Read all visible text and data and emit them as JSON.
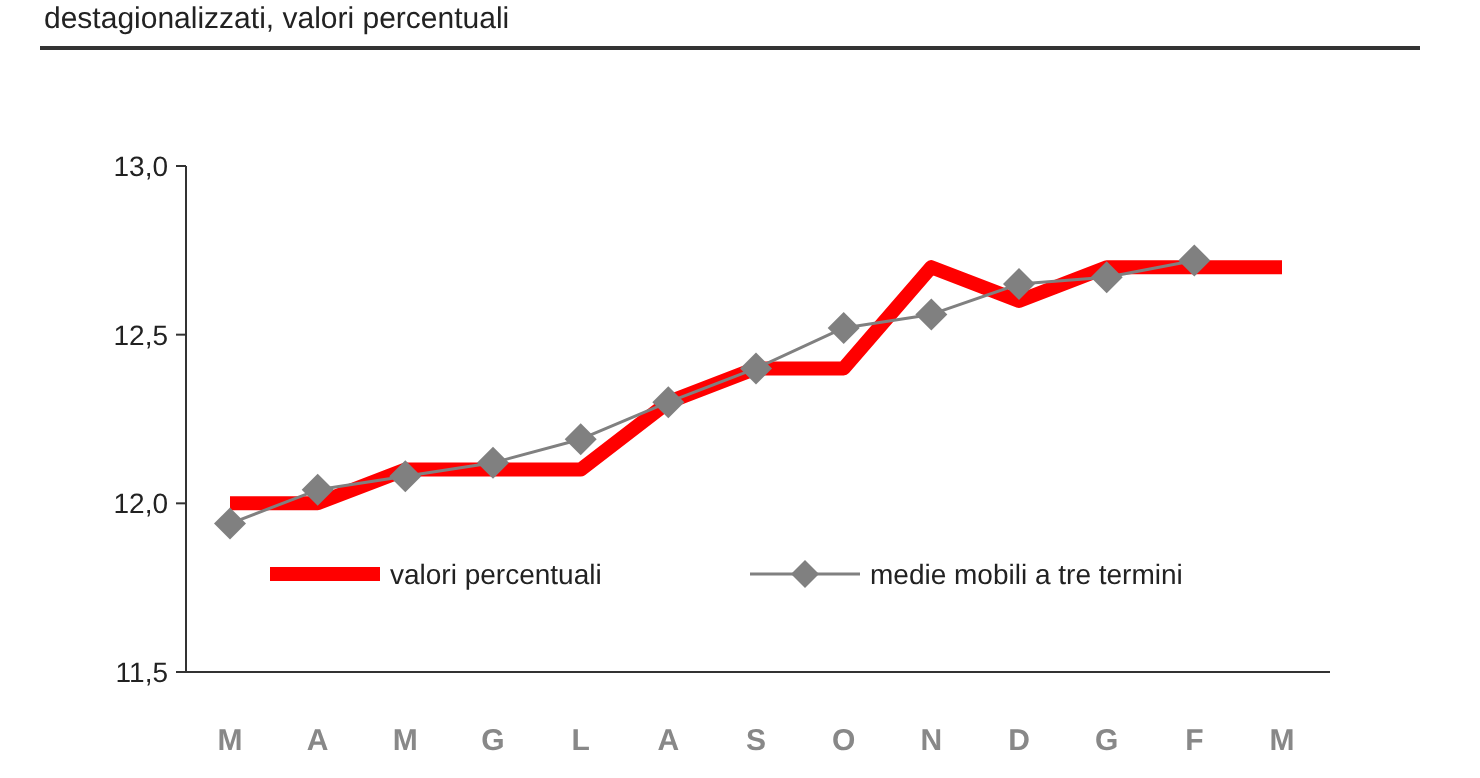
{
  "chart_data": {
    "type": "line",
    "title": "destagionalizzati, valori percentuali",
    "categories": [
      "M",
      "A",
      "M",
      "G",
      "L",
      "A",
      "S",
      "O",
      "N",
      "D",
      "G",
      "F",
      "M"
    ],
    "series": [
      {
        "name": "valori percentuali",
        "color": "#ff0000",
        "marker": "none",
        "values": [
          12.0,
          12.0,
          12.1,
          12.1,
          12.1,
          12.3,
          12.4,
          12.4,
          12.7,
          12.6,
          12.7,
          12.7,
          12.7
        ]
      },
      {
        "name": "medie mobili a tre termini",
        "color": "#808080",
        "marker": "diamond",
        "values": [
          11.94,
          12.04,
          12.08,
          12.12,
          12.19,
          12.3,
          12.4,
          12.52,
          12.56,
          12.65,
          12.67,
          12.72,
          null
        ]
      }
    ],
    "ylim": [
      11.5,
      13.0
    ],
    "yticks": [
      {
        "value": 11.5,
        "label": "11,5"
      },
      {
        "value": 12.0,
        "label": "12,0"
      },
      {
        "value": 12.5,
        "label": "12,5"
      },
      {
        "value": 13.0,
        "label": "13,0"
      }
    ],
    "grid": false,
    "legend": "bottom left"
  }
}
